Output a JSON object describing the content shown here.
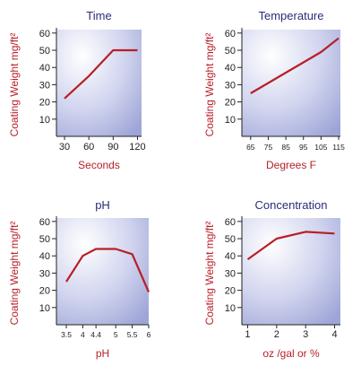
{
  "chart_data": [
    {
      "type": "line",
      "title": "Time",
      "xlabel": "Seconds",
      "ylabel": "Coating Weight mg/ft²",
      "xlim": [
        20,
        125
      ],
      "ylim": [
        0,
        62
      ],
      "xticks": [
        30,
        60,
        90,
        120
      ],
      "xtick_labels": [
        "30",
        "60",
        "90",
        "120"
      ],
      "yticks": [
        10,
        20,
        30,
        40,
        50,
        60
      ],
      "series": [
        {
          "x": [
            30,
            60,
            90,
            120
          ],
          "y": [
            22,
            35,
            50,
            50
          ]
        }
      ]
    },
    {
      "type": "line",
      "title": "Temperature",
      "xlabel": "Degrees F",
      "ylabel": "Coating Weight mg/ft²",
      "xlim": [
        60,
        116
      ],
      "ylim": [
        0,
        62
      ],
      "xticks": [
        65,
        75,
        85,
        95,
        105,
        115
      ],
      "xtick_labels": [
        "65",
        "75",
        "85",
        "95",
        "105",
        "115"
      ],
      "yticks": [
        10,
        20,
        30,
        40,
        50,
        60
      ],
      "series": [
        {
          "x": [
            65,
            75,
            85,
            95,
            105,
            115
          ],
          "y": [
            25,
            31,
            37,
            43,
            49,
            57
          ]
        }
      ]
    },
    {
      "type": "line",
      "title": "pH",
      "xlabel": "pH",
      "ylabel": "Coating Weight mg/ft²",
      "xlim": [
        3.2,
        6.0
      ],
      "ylim": [
        0,
        62
      ],
      "xticks": [
        3.5,
        4,
        4.4,
        5,
        5.5,
        6
      ],
      "xtick_labels": [
        "3.5",
        "4",
        "4.4",
        "5",
        "5.5",
        "6"
      ],
      "yticks": [
        10,
        20,
        30,
        40,
        50,
        60
      ],
      "series": [
        {
          "x": [
            3.5,
            4,
            4.4,
            5,
            5.5,
            6
          ],
          "y": [
            25,
            40,
            44,
            44,
            41,
            19
          ]
        }
      ]
    },
    {
      "type": "line",
      "title": "Concentration",
      "xlabel": "oz /gal or %",
      "ylabel": "Coating Weight mg/ft²",
      "xlim": [
        0.8,
        4.2
      ],
      "ylim": [
        0,
        62
      ],
      "xticks": [
        1,
        2,
        3,
        4
      ],
      "xtick_labels": [
        "1",
        "2",
        "3",
        "4"
      ],
      "yticks": [
        10,
        20,
        30,
        40,
        50,
        60
      ],
      "series": [
        {
          "x": [
            1,
            2,
            3,
            4
          ],
          "y": [
            38,
            50,
            54,
            53
          ]
        }
      ]
    }
  ]
}
